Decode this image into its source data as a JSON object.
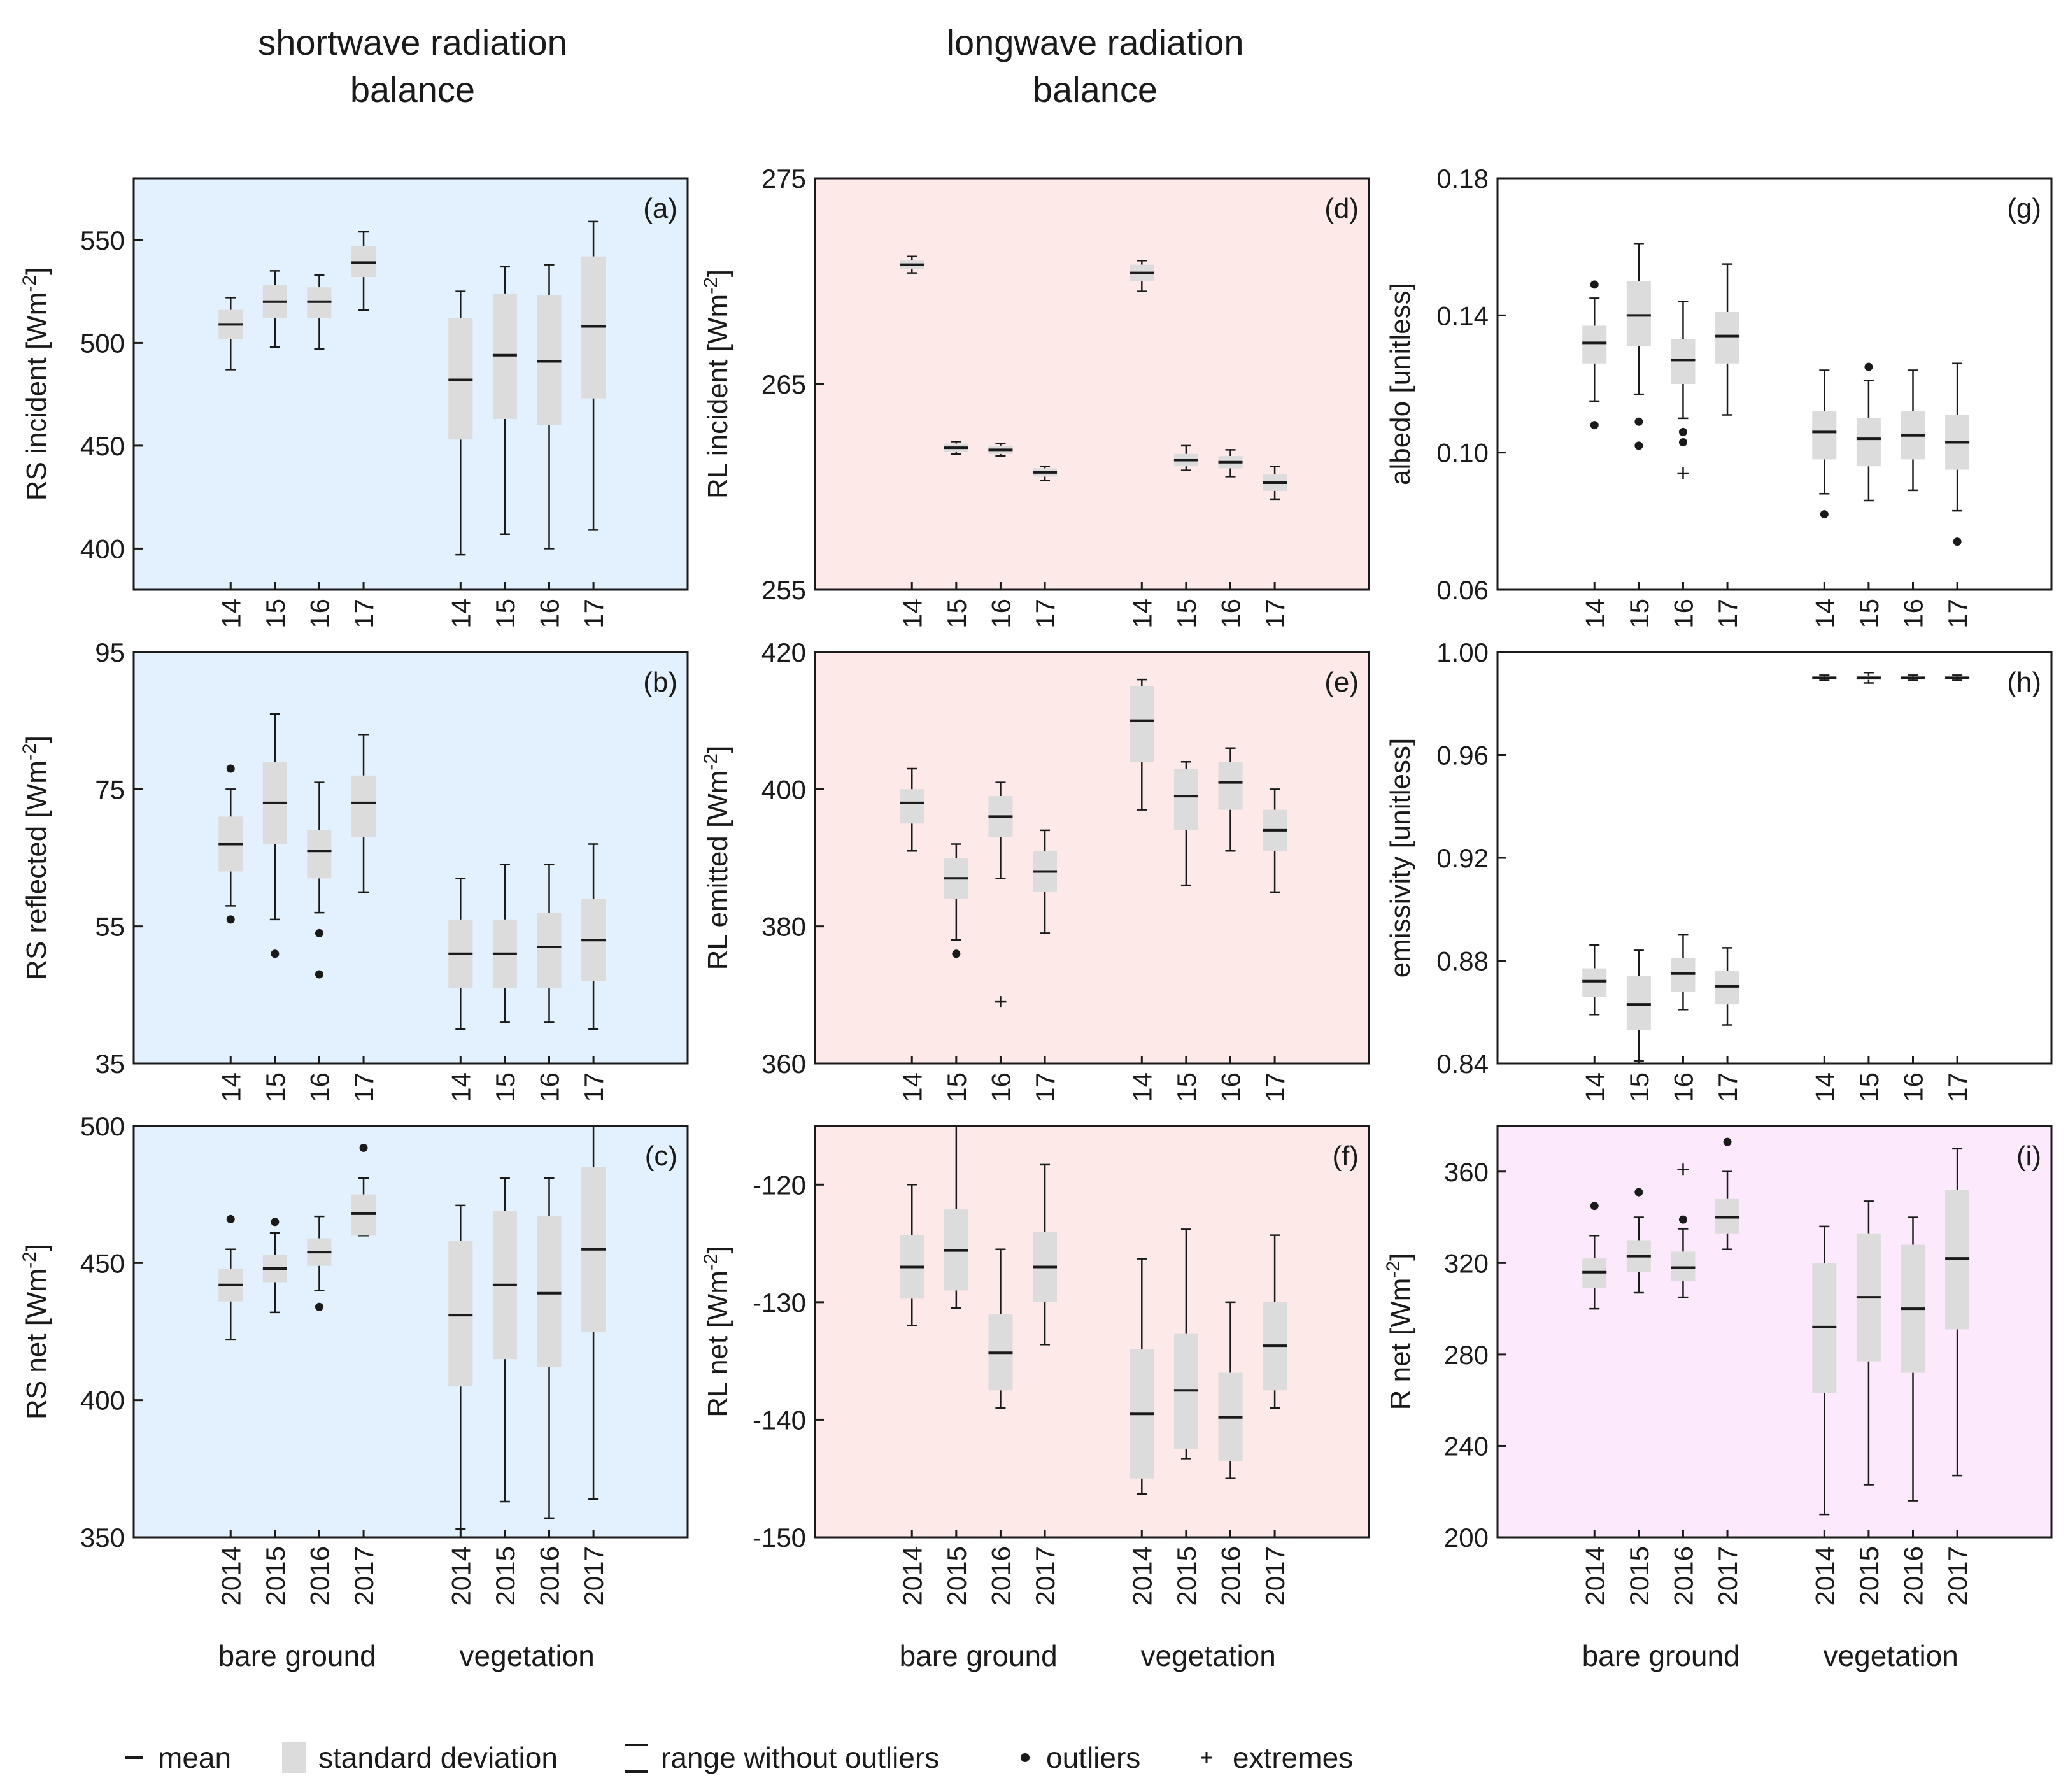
{
  "column_titles": [
    {
      "line1": "shortwave radiation",
      "line2": "balance"
    },
    {
      "line1": "longwave radiation",
      "line2": "balance"
    }
  ],
  "groups": [
    "bare ground",
    "vegetation"
  ],
  "colors": {
    "blue": "#e3f0fd",
    "red": "#fde9e7",
    "pink": "#fceafc",
    "box": "#dcdcdc",
    "ink": "#1a1a1a"
  },
  "legend": {
    "mean": "mean",
    "sd": "standard deviation",
    "range": "range without outliers",
    "outliers": "outliers",
    "extremes": "extremes"
  },
  "chart_data": [
    {
      "id": "a",
      "type": "box",
      "panel_label": "(a)",
      "ylabel": "RS incident [Wm",
      "ylabel_sup": "-2",
      "ylabel_end": "]",
      "ylim": [
        380,
        580
      ],
      "yticks": [
        "400",
        "450",
        "500",
        "550"
      ],
      "categories": [
        "14",
        "15",
        "16",
        "17",
        "14",
        "15",
        "16",
        "17"
      ],
      "bg": "blue",
      "boxes": [
        {
          "wmin": 487,
          "q1": 502,
          "med": 509,
          "q3": 516,
          "wmax": 522,
          "out": [],
          "ext": []
        },
        {
          "wmin": 498,
          "q1": 512,
          "med": 520,
          "q3": 528,
          "wmax": 535,
          "out": [],
          "ext": []
        },
        {
          "wmin": 497,
          "q1": 512,
          "med": 520,
          "q3": 527,
          "wmax": 533,
          "out": [],
          "ext": []
        },
        {
          "wmin": 516,
          "q1": 532,
          "med": 539,
          "q3": 547,
          "wmax": 554,
          "out": [],
          "ext": []
        },
        {
          "wmin": 397,
          "q1": 453,
          "med": 482,
          "q3": 512,
          "wmax": 525,
          "out": [],
          "ext": []
        },
        {
          "wmin": 407,
          "q1": 463,
          "med": 494,
          "q3": 524,
          "wmax": 537,
          "out": [],
          "ext": []
        },
        {
          "wmin": 400,
          "q1": 460,
          "med": 491,
          "q3": 523,
          "wmax": 538,
          "out": [],
          "ext": []
        },
        {
          "wmin": 409,
          "q1": 473,
          "med": 508,
          "q3": 542,
          "wmax": 559,
          "out": [],
          "ext": []
        }
      ]
    },
    {
      "id": "b",
      "type": "box",
      "panel_label": "(b)",
      "ylabel": "RS reflected [Wm",
      "ylabel_sup": "-2",
      "ylabel_end": "]",
      "ylim": [
        35,
        95
      ],
      "yticks": [
        "35",
        "55",
        "75",
        "95"
      ],
      "categories": [
        "14",
        "15",
        "16",
        "17",
        "14",
        "15",
        "16",
        "17"
      ],
      "bg": "blue",
      "boxes": [
        {
          "wmin": 58,
          "q1": 63,
          "med": 67,
          "q3": 71,
          "wmax": 75,
          "out": [
            56,
            78
          ],
          "ext": []
        },
        {
          "wmin": 56,
          "q1": 67,
          "med": 73,
          "q3": 79,
          "wmax": 86,
          "out": [
            51
          ],
          "ext": []
        },
        {
          "wmin": 57,
          "q1": 62,
          "med": 66,
          "q3": 69,
          "wmax": 76,
          "out": [
            54,
            48
          ],
          "ext": []
        },
        {
          "wmin": 60,
          "q1": 68,
          "med": 73,
          "q3": 77,
          "wmax": 83,
          "out": [],
          "ext": []
        },
        {
          "wmin": 40,
          "q1": 46,
          "med": 51,
          "q3": 56,
          "wmax": 62,
          "out": [],
          "ext": []
        },
        {
          "wmin": 41,
          "q1": 46,
          "med": 51,
          "q3": 56,
          "wmax": 64,
          "out": [],
          "ext": []
        },
        {
          "wmin": 41,
          "q1": 46,
          "med": 52,
          "q3": 57,
          "wmax": 64,
          "out": [],
          "ext": []
        },
        {
          "wmin": 40,
          "q1": 47,
          "med": 53,
          "q3": 59,
          "wmax": 67,
          "out": [],
          "ext": []
        }
      ]
    },
    {
      "id": "c",
      "type": "box",
      "panel_label": "(c)",
      "ylabel": "RS net [Wm",
      "ylabel_sup": "-2",
      "ylabel_end": "]",
      "ylim": [
        350,
        500
      ],
      "yticks": [
        "350",
        "400",
        "450",
        "500"
      ],
      "categories": [
        "2014",
        "2015",
        "2016",
        "2017",
        "2014",
        "2015",
        "2016",
        "2017"
      ],
      "bg": "blue",
      "boxes": [
        {
          "wmin": 422,
          "q1": 436,
          "med": 442,
          "q3": 448,
          "wmax": 455,
          "out": [
            466
          ],
          "ext": []
        },
        {
          "wmin": 432,
          "q1": 443,
          "med": 448,
          "q3": 453,
          "wmax": 461,
          "out": [
            465
          ],
          "ext": []
        },
        {
          "wmin": 440,
          "q1": 449,
          "med": 454,
          "q3": 459,
          "wmax": 467,
          "out": [
            434
          ],
          "ext": []
        },
        {
          "wmin": 460,
          "q1": 460,
          "med": 468,
          "q3": 475,
          "wmax": 481,
          "out": [
            492
          ],
          "ext": []
        },
        {
          "wmin": 353,
          "q1": 405,
          "med": 431,
          "q3": 458,
          "wmax": 471,
          "out": [],
          "ext": []
        },
        {
          "wmin": 363,
          "q1": 415,
          "med": 442,
          "q3": 469,
          "wmax": 481,
          "out": [],
          "ext": []
        },
        {
          "wmin": 357,
          "q1": 412,
          "med": 439,
          "q3": 467,
          "wmax": 481,
          "out": [],
          "ext": []
        },
        {
          "wmin": 364,
          "q1": 425,
          "med": 455,
          "q3": 485,
          "wmax": 500,
          "out": [],
          "ext": []
        }
      ]
    },
    {
      "id": "d",
      "type": "box",
      "panel_label": "(d)",
      "ylabel": "RL incident [Wm",
      "ylabel_sup": "-2",
      "ylabel_end": "]",
      "ylim": [
        255,
        275
      ],
      "yticks": [
        "255",
        "265",
        "275"
      ],
      "categories": [
        "14",
        "15",
        "16",
        "17",
        "14",
        "15",
        "16",
        "17"
      ],
      "bg": "red",
      "boxes": [
        {
          "wmin": 270.4,
          "q1": 270.6,
          "med": 270.8,
          "q3": 271.0,
          "wmax": 271.2,
          "out": [],
          "ext": []
        },
        {
          "wmin": 261.6,
          "q1": 261.7,
          "med": 261.9,
          "q3": 262.1,
          "wmax": 262.2,
          "out": [],
          "ext": []
        },
        {
          "wmin": 261.5,
          "q1": 261.6,
          "med": 261.8,
          "q3": 262.0,
          "wmax": 262.1,
          "out": [],
          "ext": []
        },
        {
          "wmin": 260.3,
          "q1": 260.5,
          "med": 260.7,
          "q3": 260.9,
          "wmax": 261.0,
          "out": [],
          "ext": []
        },
        {
          "wmin": 269.5,
          "q1": 270.0,
          "med": 270.4,
          "q3": 270.8,
          "wmax": 271.0,
          "out": [],
          "ext": []
        },
        {
          "wmin": 260.8,
          "q1": 261.0,
          "med": 261.3,
          "q3": 261.6,
          "wmax": 262.0,
          "out": [],
          "ext": []
        },
        {
          "wmin": 260.5,
          "q1": 260.9,
          "med": 261.2,
          "q3": 261.5,
          "wmax": 261.8,
          "out": [],
          "ext": []
        },
        {
          "wmin": 259.4,
          "q1": 259.8,
          "med": 260.2,
          "q3": 260.6,
          "wmax": 261.0,
          "out": [],
          "ext": []
        }
      ]
    },
    {
      "id": "e",
      "type": "box",
      "panel_label": "(e)",
      "ylabel": "RL emitted [Wm",
      "ylabel_sup": "-2",
      "ylabel_end": "]",
      "ylim": [
        360,
        420
      ],
      "yticks": [
        "360",
        "380",
        "400",
        "420"
      ],
      "categories": [
        "14",
        "15",
        "16",
        "17",
        "14",
        "15",
        "16",
        "17"
      ],
      "bg": "red",
      "boxes": [
        {
          "wmin": 391,
          "q1": 395,
          "med": 398,
          "q3": 400,
          "wmax": 403,
          "out": [],
          "ext": []
        },
        {
          "wmin": 378,
          "q1": 384,
          "med": 387,
          "q3": 390,
          "wmax": 392,
          "out": [
            376
          ],
          "ext": []
        },
        {
          "wmin": 387,
          "q1": 393,
          "med": 396,
          "q3": 399,
          "wmax": 401,
          "out": [],
          "ext": [
            369
          ]
        },
        {
          "wmin": 379,
          "q1": 385,
          "med": 388,
          "q3": 391,
          "wmax": 394,
          "out": [],
          "ext": []
        },
        {
          "wmin": 397,
          "q1": 404,
          "med": 410,
          "q3": 415,
          "wmax": 416,
          "out": [],
          "ext": []
        },
        {
          "wmin": 386,
          "q1": 394,
          "med": 399,
          "q3": 403,
          "wmax": 404,
          "out": [],
          "ext": []
        },
        {
          "wmin": 391,
          "q1": 397,
          "med": 401,
          "q3": 404,
          "wmax": 406,
          "out": [],
          "ext": []
        },
        {
          "wmin": 385,
          "q1": 391,
          "med": 394,
          "q3": 397,
          "wmax": 400,
          "out": [],
          "ext": []
        }
      ]
    },
    {
      "id": "f",
      "type": "box",
      "panel_label": "(f)",
      "ylabel": "RL net [Wm",
      "ylabel_sup": "-2",
      "ylabel_end": "]",
      "ylim": [
        -150,
        -115
      ],
      "yticks": [
        "-150",
        "-140",
        "-130",
        "-120"
      ],
      "categories": [
        "2014",
        "2015",
        "2016",
        "2017",
        "2014",
        "2015",
        "2016",
        "2017"
      ],
      "bg": "red",
      "boxes": [
        {
          "wmin": -132,
          "q1": -129.7,
          "med": -127,
          "q3": -124.3,
          "wmax": -120,
          "out": [],
          "ext": []
        },
        {
          "wmin": -130.5,
          "q1": -129,
          "med": -125.6,
          "q3": -122.1,
          "wmax": -115,
          "out": [],
          "ext": []
        },
        {
          "wmin": -139,
          "q1": -137.5,
          "med": -134.3,
          "q3": -131,
          "wmax": -125.5,
          "out": [],
          "ext": []
        },
        {
          "wmin": -133.6,
          "q1": -130,
          "med": -127,
          "q3": -124,
          "wmax": -118.3,
          "out": [],
          "ext": []
        },
        {
          "wmin": -146.3,
          "q1": -145,
          "med": -139.5,
          "q3": -134,
          "wmax": -126.3,
          "out": [],
          "ext": []
        },
        {
          "wmin": -143.3,
          "q1": -142.5,
          "med": -137.5,
          "q3": -132.7,
          "wmax": -123.8,
          "out": [],
          "ext": []
        },
        {
          "wmin": -145,
          "q1": -143.5,
          "med": -139.8,
          "q3": -136,
          "wmax": -130,
          "out": [],
          "ext": []
        },
        {
          "wmin": -139,
          "q1": -137.5,
          "med": -133.7,
          "q3": -130,
          "wmax": -124.3,
          "out": [],
          "ext": []
        }
      ]
    },
    {
      "id": "g",
      "type": "box",
      "panel_label": "(g)",
      "ylabel": "albedo [unitless]",
      "ylabel_sup": "",
      "ylabel_end": "",
      "ylim": [
        0.06,
        0.18
      ],
      "yticks": [
        "0.06",
        "0.10",
        "0.14",
        "0.18"
      ],
      "categories": [
        "14",
        "15",
        "16",
        "17",
        "14",
        "15",
        "16",
        "17"
      ],
      "bg": "white",
      "boxes": [
        {
          "wmin": 0.115,
          "q1": 0.126,
          "med": 0.132,
          "q3": 0.137,
          "wmax": 0.145,
          "out": [
            0.149,
            0.108
          ],
          "ext": []
        },
        {
          "wmin": 0.117,
          "q1": 0.131,
          "med": 0.14,
          "q3": 0.15,
          "wmax": 0.161,
          "out": [
            0.109,
            0.102
          ],
          "ext": []
        },
        {
          "wmin": 0.11,
          "q1": 0.12,
          "med": 0.127,
          "q3": 0.133,
          "wmax": 0.144,
          "out": [
            0.106,
            0.103
          ],
          "ext": [
            0.094
          ]
        },
        {
          "wmin": 0.111,
          "q1": 0.126,
          "med": 0.134,
          "q3": 0.141,
          "wmax": 0.155,
          "out": [],
          "ext": []
        },
        {
          "wmin": 0.088,
          "q1": 0.098,
          "med": 0.106,
          "q3": 0.112,
          "wmax": 0.124,
          "out": [
            0.082
          ],
          "ext": []
        },
        {
          "wmin": 0.086,
          "q1": 0.096,
          "med": 0.104,
          "q3": 0.11,
          "wmax": 0.121,
          "out": [
            0.125
          ],
          "ext": []
        },
        {
          "wmin": 0.089,
          "q1": 0.098,
          "med": 0.105,
          "q3": 0.112,
          "wmax": 0.124,
          "out": [],
          "ext": []
        },
        {
          "wmin": 0.083,
          "q1": 0.095,
          "med": 0.103,
          "q3": 0.111,
          "wmax": 0.126,
          "out": [
            0.074
          ],
          "ext": []
        }
      ]
    },
    {
      "id": "h",
      "type": "box",
      "panel_label": "(h)",
      "ylabel": "emissivity [unitless]",
      "ylabel_sup": "",
      "ylabel_end": "",
      "ylim": [
        0.84,
        1.0
      ],
      "yticks": [
        "0.84",
        "0.88",
        "0.92",
        "0.96",
        "1.00"
      ],
      "categories": [
        "14",
        "15",
        "16",
        "17",
        "14",
        "15",
        "16",
        "17"
      ],
      "bg": "white",
      "boxes": [
        {
          "wmin": 0.859,
          "q1": 0.866,
          "med": 0.872,
          "q3": 0.877,
          "wmax": 0.886,
          "out": [],
          "ext": []
        },
        {
          "wmin": 0.841,
          "q1": 0.853,
          "med": 0.863,
          "q3": 0.874,
          "wmax": 0.884,
          "out": [],
          "ext": []
        },
        {
          "wmin": 0.861,
          "q1": 0.868,
          "med": 0.875,
          "q3": 0.881,
          "wmax": 0.89,
          "out": [],
          "ext": []
        },
        {
          "wmin": 0.855,
          "q1": 0.863,
          "med": 0.87,
          "q3": 0.876,
          "wmax": 0.885,
          "out": [],
          "ext": []
        },
        {
          "wmin": 0.989,
          "q1": 0.9895,
          "med": 0.99,
          "q3": 0.9905,
          "wmax": 0.991,
          "out": [],
          "ext": []
        },
        {
          "wmin": 0.988,
          "q1": 0.9892,
          "med": 0.99,
          "q3": 0.9908,
          "wmax": 0.992,
          "out": [],
          "ext": []
        },
        {
          "wmin": 0.989,
          "q1": 0.9895,
          "med": 0.99,
          "q3": 0.9905,
          "wmax": 0.991,
          "out": [],
          "ext": []
        },
        {
          "wmin": 0.989,
          "q1": 0.9895,
          "med": 0.99,
          "q3": 0.9905,
          "wmax": 0.991,
          "out": [],
          "ext": []
        }
      ]
    },
    {
      "id": "i",
      "type": "box",
      "panel_label": "(i)",
      "ylabel": "R net [Wm",
      "ylabel_sup": "-2",
      "ylabel_end": "]",
      "ylim": [
        200,
        380
      ],
      "yticks": [
        "200",
        "240",
        "280",
        "320",
        "360"
      ],
      "categories": [
        "2014",
        "2015",
        "2016",
        "2017",
        "2014",
        "2015",
        "2016",
        "2017"
      ],
      "bg": "pink",
      "boxes": [
        {
          "wmin": 300,
          "q1": 309,
          "med": 316,
          "q3": 322,
          "wmax": 332,
          "out": [
            345
          ],
          "ext": []
        },
        {
          "wmin": 307,
          "q1": 316,
          "med": 323,
          "q3": 330,
          "wmax": 340,
          "out": [
            351
          ],
          "ext": []
        },
        {
          "wmin": 305,
          "q1": 312,
          "med": 318,
          "q3": 325,
          "wmax": 335,
          "out": [
            339
          ],
          "ext": [
            361
          ]
        },
        {
          "wmin": 326,
          "q1": 333,
          "med": 340,
          "q3": 348,
          "wmax": 360,
          "out": [
            373
          ],
          "ext": []
        },
        {
          "wmin": 210,
          "q1": 263,
          "med": 292,
          "q3": 320,
          "wmax": 336,
          "out": [],
          "ext": []
        },
        {
          "wmin": 223,
          "q1": 277,
          "med": 305,
          "q3": 333,
          "wmax": 347,
          "out": [],
          "ext": []
        },
        {
          "wmin": 216,
          "q1": 272,
          "med": 300,
          "q3": 328,
          "wmax": 340,
          "out": [],
          "ext": []
        },
        {
          "wmin": 227,
          "q1": 291,
          "med": 322,
          "q3": 352,
          "wmax": 370,
          "out": [],
          "ext": []
        }
      ]
    }
  ]
}
